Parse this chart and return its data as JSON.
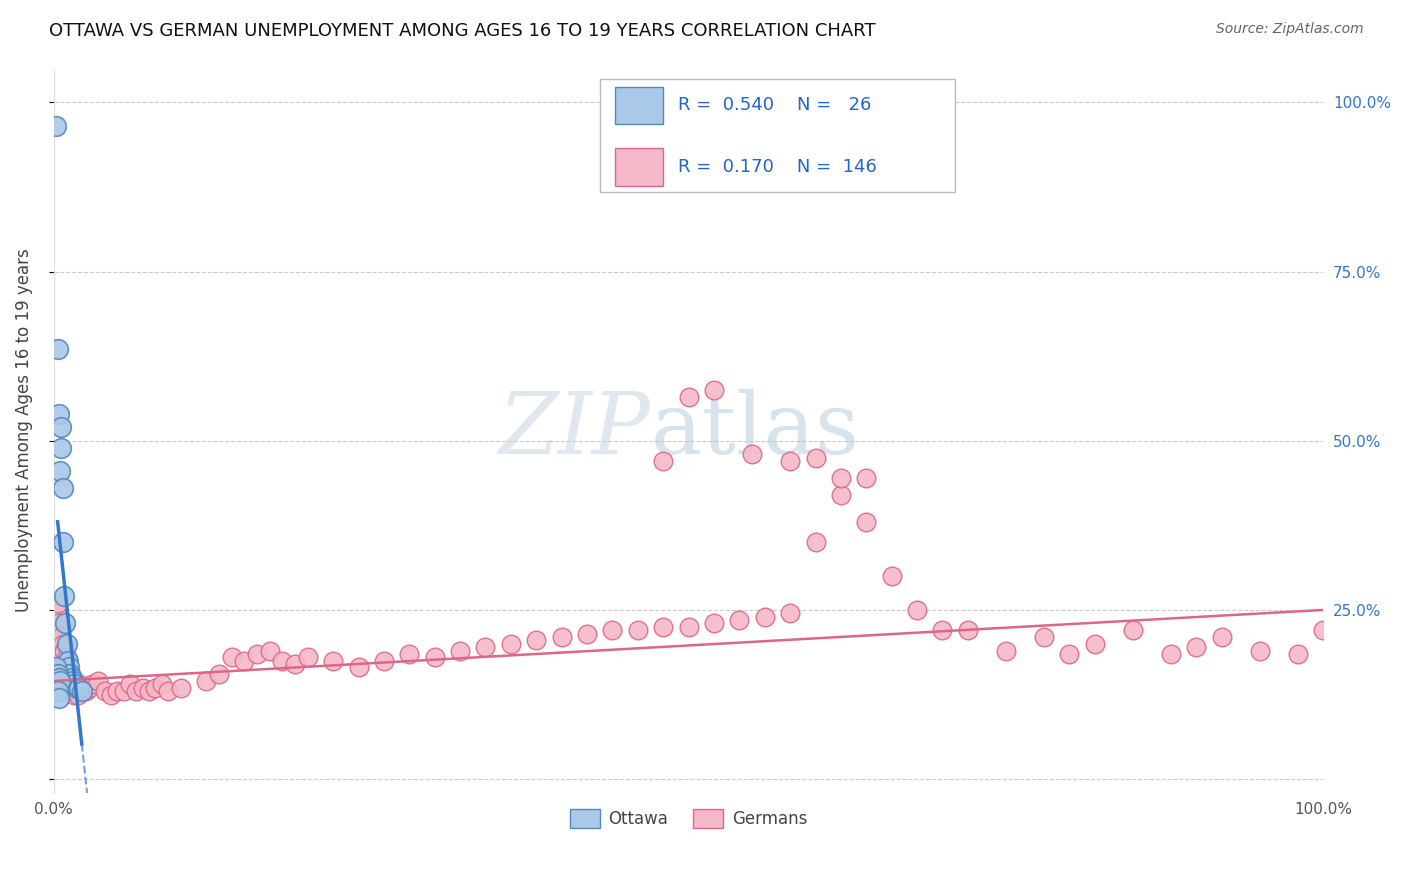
{
  "title": "OTTAWA VS GERMAN UNEMPLOYMENT AMONG AGES 16 TO 19 YEARS CORRELATION CHART",
  "source": "Source: ZipAtlas.com",
  "ylabel": "Unemployment Among Ages 16 to 19 years",
  "xlim": [
    0,
    1.0
  ],
  "ylim": [
    -0.02,
    1.05
  ],
  "grid_color": "#cccccc",
  "background_color": "#ffffff",
  "ottawa_color": "#aac8e8",
  "ottawa_edge_color": "#5588bb",
  "ottawa_line_color": "#3377cc",
  "german_color": "#f5b8c8",
  "german_edge_color": "#dd6688",
  "german_line_color": "#dd6688",
  "ottawa_R": "0.540",
  "ottawa_N": "26",
  "german_R": "0.170",
  "german_N": "146",
  "legend_R_color": "#2266cc",
  "legend_N_color": "#2266cc",
  "watermark_color": "#ccd8e8",
  "title_fontsize": 13,
  "source_fontsize": 10,
  "tick_fontsize": 11,
  "ylabel_fontsize": 12,
  "right_tick_color": "#3377cc",
  "ottawa_x": [
    0.002,
    0.003,
    0.004,
    0.005,
    0.006,
    0.006,
    0.007,
    0.007,
    0.008,
    0.009,
    0.01,
    0.011,
    0.012,
    0.013,
    0.014,
    0.015,
    0.016,
    0.018,
    0.02,
    0.022,
    0.002,
    0.003,
    0.004,
    0.005,
    0.003,
    0.004
  ],
  "ottawa_y": [
    0.965,
    0.635,
    0.54,
    0.455,
    0.52,
    0.49,
    0.43,
    0.35,
    0.27,
    0.23,
    0.2,
    0.175,
    0.165,
    0.155,
    0.15,
    0.145,
    0.14,
    0.135,
    0.135,
    0.13,
    0.165,
    0.155,
    0.15,
    0.145,
    0.13,
    0.12
  ],
  "german_x_cluster": [
    0.002,
    0.003,
    0.003,
    0.004,
    0.004,
    0.004,
    0.005,
    0.005,
    0.005,
    0.006,
    0.006,
    0.006,
    0.007,
    0.007,
    0.007,
    0.008,
    0.008,
    0.008,
    0.009,
    0.009,
    0.01,
    0.01,
    0.01,
    0.011,
    0.011,
    0.012,
    0.012,
    0.013,
    0.014,
    0.015,
    0.016,
    0.017,
    0.018,
    0.019,
    0.02,
    0.022,
    0.025,
    0.028,
    0.03,
    0.035,
    0.04,
    0.045,
    0.05,
    0.055,
    0.06,
    0.065,
    0.07,
    0.075,
    0.08,
    0.085,
    0.09,
    0.1
  ],
  "german_y_cluster": [
    0.25,
    0.22,
    0.26,
    0.2,
    0.23,
    0.19,
    0.195,
    0.18,
    0.22,
    0.17,
    0.19,
    0.21,
    0.165,
    0.18,
    0.2,
    0.16,
    0.175,
    0.19,
    0.155,
    0.17,
    0.15,
    0.165,
    0.18,
    0.145,
    0.16,
    0.145,
    0.155,
    0.14,
    0.135,
    0.13,
    0.125,
    0.135,
    0.13,
    0.125,
    0.14,
    0.135,
    0.13,
    0.135,
    0.14,
    0.145,
    0.13,
    0.125,
    0.13,
    0.13,
    0.14,
    0.13,
    0.135,
    0.13,
    0.135,
    0.14,
    0.13,
    0.135
  ],
  "german_x_mid": [
    0.12,
    0.13,
    0.14,
    0.15,
    0.16,
    0.17,
    0.18,
    0.19,
    0.2,
    0.22,
    0.24,
    0.26,
    0.28,
    0.3,
    0.32,
    0.34,
    0.36,
    0.38,
    0.4,
    0.42,
    0.44,
    0.46,
    0.48,
    0.5,
    0.52,
    0.54,
    0.56,
    0.58,
    0.6,
    0.62,
    0.64,
    0.66,
    0.68,
    0.7
  ],
  "german_y_mid": [
    0.145,
    0.155,
    0.18,
    0.175,
    0.185,
    0.19,
    0.175,
    0.17,
    0.18,
    0.175,
    0.165,
    0.175,
    0.185,
    0.18,
    0.19,
    0.195,
    0.2,
    0.205,
    0.21,
    0.215,
    0.22,
    0.22,
    0.225,
    0.225,
    0.23,
    0.235,
    0.24,
    0.245,
    0.35,
    0.42,
    0.38,
    0.3,
    0.25,
    0.22
  ],
  "german_x_outlier": [
    0.5,
    0.52,
    0.62,
    0.64,
    0.6,
    0.55,
    0.48,
    0.58
  ],
  "german_y_outlier": [
    0.565,
    0.575,
    0.445,
    0.445,
    0.475,
    0.48,
    0.47,
    0.47
  ],
  "german_x_right": [
    0.72,
    0.75,
    0.78,
    0.8,
    0.82,
    0.85,
    0.88,
    0.9,
    0.92,
    0.95,
    0.98,
    1.0
  ],
  "german_y_right": [
    0.22,
    0.19,
    0.21,
    0.185,
    0.2,
    0.22,
    0.185,
    0.195,
    0.21,
    0.19,
    0.185,
    0.22
  ]
}
